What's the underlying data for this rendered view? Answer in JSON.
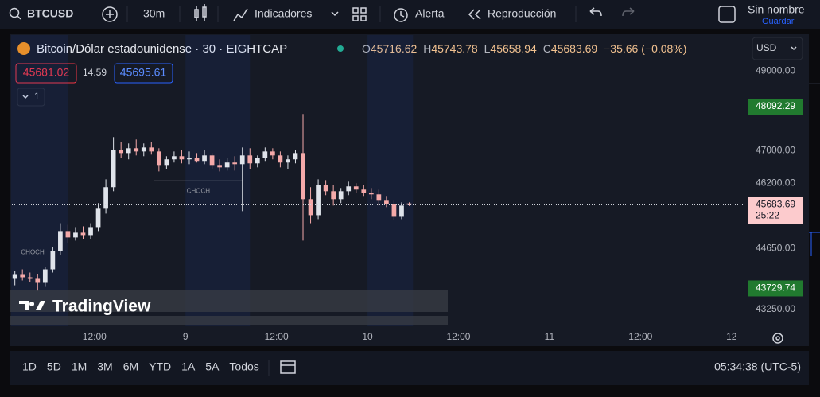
{
  "toolbar": {
    "symbol": "BTCUSD",
    "interval": "30m",
    "indicators": "Indicadores",
    "alert": "Alerta",
    "replay": "Reproducción",
    "layout_name": "Sin nombre",
    "save": "Guardar"
  },
  "legend": {
    "title": "Bitcoin/Dólar estadounidense · 30 · EIGHTCAP",
    "open_label": "O",
    "high_label": "H",
    "low_label": "L",
    "close_label": "C",
    "change": "−35.66 (−0.08%)",
    "bid": "45681.02",
    "spread": "14.59",
    "ask": "45695.61",
    "indicator_count": "1"
  },
  "currency": "USD",
  "chart_data": {
    "type": "candlestick",
    "x": [
      -22.5,
      -21.5,
      -20.5,
      -19.5,
      -18.5,
      -17.5,
      -16.5,
      -15.5,
      -14.5,
      -13.5,
      -12.5,
      -11.5,
      -10.5,
      -9.5,
      -8.5,
      -7.5,
      -6.5,
      -5.5,
      -4.5,
      -3.5,
      -2.5,
      -1.5,
      -0.5,
      0.5,
      1.5,
      2.5,
      3.5,
      4.5,
      5.5,
      6.5,
      7.5,
      8.5,
      9.5,
      10.5,
      11.5,
      12.5,
      13.5,
      14.5,
      15.5,
      16.5,
      17.5,
      18.5,
      19.5,
      20.5,
      21.5,
      22.5,
      23.5,
      24.5,
      25.5,
      26.5,
      27.5,
      28.5,
      29.5
    ],
    "open": [
      43949,
      44040,
      43985,
      43949,
      43857,
      44168,
      44593,
      45062,
      44912,
      45024,
      44949,
      45155,
      45591,
      46108,
      47017,
      46939,
      47057,
      46978,
      47076,
      46978,
      46628,
      46785,
      46862,
      46785,
      46824,
      46746,
      46881,
      46628,
      46589,
      46707,
      46667,
      46881,
      46687,
      46824,
      46978,
      46881,
      46707,
      46785,
      46939,
      45820,
      45438,
      46165,
      46011,
      45820,
      46011,
      46127,
      46050,
      45973,
      45935,
      45782,
      45706,
      45400,
      45716.62
    ],
    "high": [
      44131,
      44168,
      44095,
      44058,
      44223,
      44688,
      45247,
      45210,
      45155,
      45173,
      45247,
      45725,
      46298,
      47332,
      47214,
      47175,
      47273,
      47175,
      47214,
      47057,
      46862,
      46978,
      47017,
      46978,
      46939,
      47017,
      46939,
      46785,
      46824,
      46862,
      47076,
      47057,
      46881,
      47076,
      47057,
      46978,
      46881,
      47017,
      47909,
      46108,
      46298,
      46279,
      46165,
      46088,
      46241,
      46204,
      46165,
      46088,
      46050,
      45897,
      45782,
      45744,
      45743.78
    ],
    "low": [
      43801,
      43912,
      43875,
      43674,
      43764,
      44095,
      44500,
      44781,
      44837,
      44874,
      44874,
      45062,
      45476,
      46011,
      46824,
      46785,
      46881,
      46862,
      46901,
      46491,
      46550,
      46707,
      46687,
      46667,
      46707,
      46667,
      46550,
      46491,
      46511,
      46511,
      45534,
      46550,
      46589,
      46746,
      46785,
      46589,
      46550,
      46687,
      44837,
      45247,
      45343,
      45916,
      45667,
      45725,
      45916,
      45973,
      45897,
      45820,
      45667,
      45629,
      45323,
      45343,
      45658.94
    ],
    "close": [
      44040,
      43985,
      43949,
      43857,
      44168,
      44593,
      45062,
      44912,
      45024,
      44949,
      45155,
      45591,
      46108,
      47017,
      46939,
      47057,
      46978,
      47076,
      46978,
      46628,
      46785,
      46862,
      46785,
      46824,
      46746,
      46881,
      46628,
      46589,
      46707,
      46667,
      46881,
      46687,
      46824,
      46978,
      46881,
      46707,
      46785,
      46939,
      45820,
      45438,
      46165,
      46011,
      45820,
      46011,
      46127,
      46050,
      45973,
      45935,
      45782,
      45706,
      45400,
      45667,
      45683.69
    ],
    "up_color": "#dfe3ea",
    "down_color": "#f4a9a9",
    "xlim": [
      -23.2,
      73.6
    ],
    "ylim": [
      42873,
      49929
    ],
    "log_scale": true,
    "grid": false,
    "xticks": [
      {
        "value": -12,
        "label": "12:00"
      },
      {
        "value": 0,
        "label": "9"
      },
      {
        "value": 12,
        "label": "12:00"
      },
      {
        "value": 24,
        "label": "10"
      },
      {
        "value": 36,
        "label": "12:00"
      },
      {
        "value": 48,
        "label": "11"
      },
      {
        "value": 60,
        "label": "12:00"
      },
      {
        "value": 72,
        "label": "12"
      }
    ],
    "yticks": [
      {
        "value": 49000,
        "label": "49000.00"
      },
      {
        "value": 47000,
        "label": "47000.00"
      },
      {
        "value": 46200,
        "label": "46200.00"
      },
      {
        "value": 44650,
        "label": "44650.00"
      },
      {
        "value": 43250,
        "label": "43250.00"
      }
    ],
    "price_labels": [
      {
        "value": 48092.29,
        "color": "#217a2f"
      },
      {
        "value": 43729.74,
        "color": "#217a2f"
      }
    ],
    "countdown": "25:22",
    "sessions": [
      [
        -23,
        -15.5
      ],
      [
        0,
        8.5
      ],
      [
        24,
        30
      ]
    ],
    "annotations": [
      {
        "text": "CHOCH",
        "x": [
          -22.8,
          -17.5
        ],
        "y": 44315,
        "position": "above"
      },
      {
        "text": "CHOCH",
        "x": [
          -4.2,
          7.6
        ],
        "y": 46260,
        "position": "below"
      }
    ],
    "watermark": "TradingView"
  },
  "timeframes": [
    "1D",
    "5D",
    "1M",
    "3M",
    "6M",
    "YTD",
    "1A",
    "5A",
    "Todos"
  ],
  "clock": "05:34:38 (UTC-5)"
}
